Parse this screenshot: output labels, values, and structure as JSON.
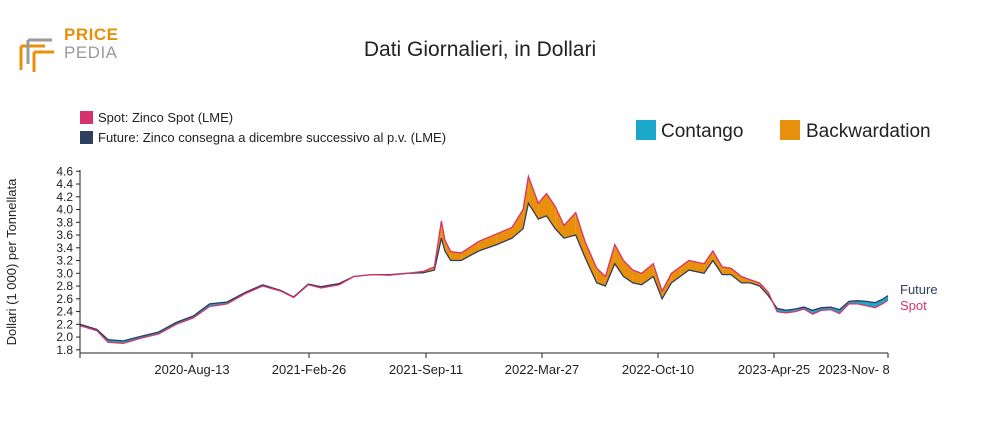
{
  "logo": {
    "line1": "PRICE",
    "line2": "PEDIA",
    "color_orange": "#e8900c",
    "color_gray": "#9a9a9a"
  },
  "chart_data": {
    "type": "area",
    "title": "Dati Giornalieri, in Dollari",
    "ylabel": "Dollari (1 000) per Tonnellata",
    "xlabel": "",
    "ylim": [
      1.75,
      4.62
    ],
    "yticks": [
      1.8,
      2.0,
      2.2,
      2.4,
      2.6,
      2.8,
      3.0,
      3.2,
      3.4,
      3.6,
      3.8,
      4.0,
      4.2,
      4.4,
      4.6
    ],
    "ytick_labels": [
      "1.8",
      "2.0",
      "2.2",
      "2.4",
      "2.6",
      "2.8",
      "3.0",
      "3.2",
      "3.4",
      "3.6",
      "3.8",
      "4.0",
      "4.2",
      "4.4",
      "4.6"
    ],
    "xtick_labels": [
      "2020-Aug-13",
      "2021-Feb-26",
      "2021-Sep-11",
      "2022-Mar-27",
      "2022-Oct-10",
      "2023-Apr-25",
      "2023-Nov- 8"
    ],
    "legend_series": [
      {
        "name": "Spot: Zinco Spot (LME)",
        "color": "#d6336c"
      },
      {
        "name": "Future: Zinco consegna a dicembre successivo al p.v. (LME)",
        "color": "#2d3e5e"
      }
    ],
    "legend_fill": [
      {
        "name": "Contango",
        "color": "#1aa7c9"
      },
      {
        "name": "Backwardation",
        "color": "#e8900c"
      }
    ],
    "end_labels": {
      "future": "Future",
      "spot": "Spot"
    },
    "x": [
      "2020-02-01",
      "2020-03-01",
      "2020-03-20",
      "2020-04-15",
      "2020-05-15",
      "2020-06-15",
      "2020-07-15",
      "2020-08-13",
      "2020-09-10",
      "2020-10-10",
      "2020-11-10",
      "2020-12-10",
      "2021-01-10",
      "2021-02-01",
      "2021-02-26",
      "2021-03-20",
      "2021-04-20",
      "2021-05-15",
      "2021-06-15",
      "2021-07-15",
      "2021-08-15",
      "2021-09-11",
      "2021-09-30",
      "2021-10-12",
      "2021-10-18",
      "2021-10-28",
      "2021-11-15",
      "2021-12-15",
      "2022-01-15",
      "2022-02-10",
      "2022-03-01",
      "2022-03-10",
      "2022-03-27",
      "2022-04-10",
      "2022-04-25",
      "2022-05-10",
      "2022-05-30",
      "2022-06-15",
      "2022-07-05",
      "2022-07-20",
      "2022-08-05",
      "2022-08-20",
      "2022-09-05",
      "2022-09-20",
      "2022-10-10",
      "2022-10-25",
      "2022-11-10",
      "2022-11-25",
      "2022-12-10",
      "2023-01-05",
      "2023-01-20",
      "2023-02-05",
      "2023-02-20",
      "2023-03-10",
      "2023-03-25",
      "2023-04-10",
      "2023-04-25",
      "2023-05-10",
      "2023-05-25",
      "2023-06-10",
      "2023-06-25",
      "2023-07-10",
      "2023-07-25",
      "2023-08-10",
      "2023-08-25",
      "2023-09-10",
      "2023-09-25",
      "2023-10-10",
      "2023-10-25",
      "2023-11-08",
      "2023-11-16"
    ],
    "series": [
      {
        "name": "Spot",
        "values": [
          2.18,
          2.1,
          1.92,
          1.9,
          1.98,
          2.05,
          2.2,
          2.3,
          2.48,
          2.52,
          2.68,
          2.8,
          2.72,
          2.62,
          2.82,
          2.77,
          2.82,
          2.95,
          2.98,
          2.97,
          3.0,
          3.03,
          3.1,
          3.82,
          3.52,
          3.34,
          3.32,
          3.5,
          3.62,
          3.72,
          4.0,
          4.52,
          4.1,
          4.25,
          4.05,
          3.75,
          3.95,
          3.5,
          3.08,
          2.95,
          3.45,
          3.2,
          3.05,
          3.0,
          3.15,
          2.72,
          3.0,
          3.1,
          3.2,
          3.15,
          3.35,
          3.1,
          3.08,
          2.95,
          2.9,
          2.85,
          2.7,
          2.4,
          2.38,
          2.4,
          2.44,
          2.36,
          2.42,
          2.43,
          2.37,
          2.52,
          2.52,
          2.49,
          2.46,
          2.53,
          2.58
        ]
      },
      {
        "name": "Future",
        "values": [
          2.2,
          2.12,
          1.96,
          1.94,
          2.01,
          2.08,
          2.23,
          2.33,
          2.52,
          2.55,
          2.7,
          2.82,
          2.73,
          2.63,
          2.83,
          2.79,
          2.84,
          2.95,
          2.98,
          2.98,
          3.0,
          3.01,
          3.05,
          3.55,
          3.35,
          3.2,
          3.2,
          3.35,
          3.45,
          3.55,
          3.7,
          4.1,
          3.85,
          3.9,
          3.7,
          3.55,
          3.6,
          3.25,
          2.85,
          2.8,
          3.15,
          2.95,
          2.85,
          2.82,
          2.95,
          2.6,
          2.85,
          2.95,
          3.05,
          3.0,
          3.2,
          2.98,
          2.98,
          2.85,
          2.85,
          2.8,
          2.65,
          2.45,
          2.42,
          2.44,
          2.47,
          2.42,
          2.46,
          2.47,
          2.43,
          2.56,
          2.57,
          2.56,
          2.54,
          2.6,
          2.65
        ]
      }
    ],
    "grid": false,
    "legend_placement": "top"
  }
}
